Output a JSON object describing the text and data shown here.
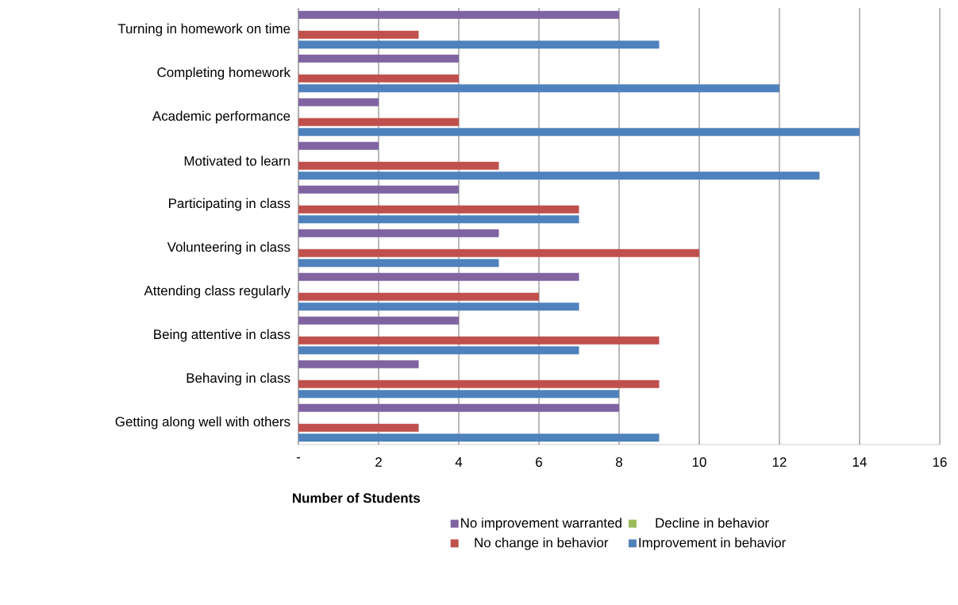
{
  "chart_data": {
    "type": "bar",
    "orientation": "horizontal",
    "categories": [
      "Turning in homework on time",
      "Completing homework",
      "Academic performance",
      "Motivated to learn",
      "Participating in class",
      "Volunteering in class",
      "Attending class regularly",
      "Being attentive in class",
      "Behaving in class",
      "Getting along well with others"
    ],
    "series": [
      {
        "name": "No improvement warranted",
        "color": "#8064a2",
        "values": [
          8,
          4,
          2,
          2,
          4,
          5,
          7,
          4,
          3,
          8
        ]
      },
      {
        "name": "Decline in behavior",
        "color": "#9bbb59",
        "values": [
          0,
          0,
          0,
          0,
          0,
          0,
          0,
          0,
          0,
          0
        ]
      },
      {
        "name": "No change in behavior",
        "color": "#c0504d",
        "values": [
          3,
          4,
          4,
          5,
          7,
          10,
          6,
          9,
          9,
          3
        ]
      },
      {
        "name": "Improvement in behavior",
        "color": "#4f81bd",
        "values": [
          9,
          12,
          14,
          13,
          7,
          5,
          7,
          7,
          8,
          9
        ]
      }
    ],
    "xlabel": "Number of Students",
    "xlim": [
      0,
      16
    ],
    "xticks": [
      {
        "value": 0,
        "label": "-"
      },
      2,
      4,
      6,
      8,
      10,
      12,
      14,
      16
    ],
    "grid": "x",
    "legend": "bottom"
  }
}
